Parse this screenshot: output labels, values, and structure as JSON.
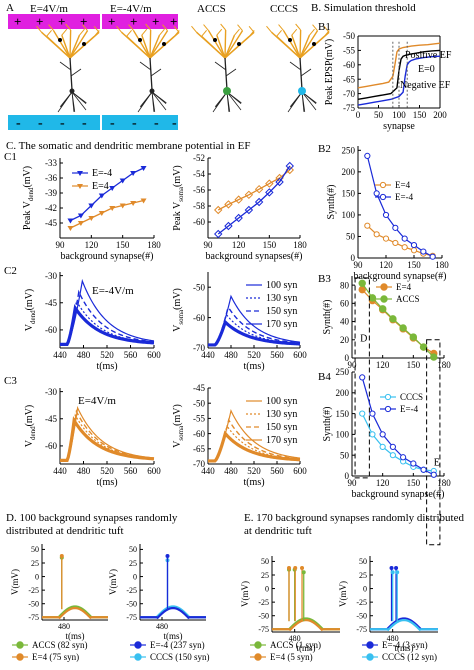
{
  "panels": {
    "A": "A",
    "B": "B. Simulation threshold",
    "C": "C. The somatic and dendritic membrane potential  in  EF",
    "D": "D. 100 background synapses  randomly distributed at dendritic tuft",
    "E": "E. 170 background synapses  randomly distributed at dendritic tuft"
  },
  "neurons": {
    "labels": [
      "E=4V/m",
      "E=-4V/m",
      "ACCS",
      "CCCS"
    ],
    "plus_row": [
      "+",
      "+",
      "+",
      "+"
    ],
    "minus_row": [
      "-",
      "-",
      "-",
      "-"
    ],
    "colors": {
      "plate_top": "#e020e0",
      "plate_bottom": "#20b8e8",
      "tuft": "#e8a020",
      "soma": "#3aa040"
    }
  },
  "subpanels": {
    "B1": "B1",
    "B2": "B2",
    "B3": "B3",
    "B4": "B4",
    "C1": "C1",
    "C2": "C2",
    "C3": "C3",
    "C2_note": "E=-4V/m",
    "C3_note": "E=4V/m",
    "B3_mark_D": "D",
    "B4_mark_E": "E"
  },
  "colors": {
    "orange": "#e08a2a",
    "blue": "#1a2ad8",
    "green": "#7ab83a",
    "cyan": "#38c0f0",
    "black": "#000000",
    "gray": "#808080"
  },
  "chart_data": [
    {
      "id": "B1",
      "type": "line",
      "xlabel": "synapse",
      "ylabel": "Peak EPSP(mV)",
      "xlim": [
        0,
        200
      ],
      "ylim": [
        -75,
        -50
      ],
      "xticks": [
        0,
        50,
        100,
        150,
        200
      ],
      "yticks": [
        -75,
        -70,
        -65,
        -60,
        -55,
        -50
      ],
      "series": [
        {
          "name": "Positive EF",
          "color": "orange",
          "x": [
            0,
            20,
            40,
            60,
            75,
            85,
            90,
            95,
            100,
            110,
            130,
            150,
            170,
            200
          ],
          "y": [
            -68,
            -67.5,
            -67,
            -66.5,
            -66,
            -64,
            -60,
            -55.5,
            -54.5,
            -54,
            -53.5,
            -53.2,
            -53,
            -52.5
          ]
        },
        {
          "name": "E=0",
          "color": "black",
          "x": [
            0,
            20,
            40,
            60,
            80,
            95,
            100,
            105,
            110,
            120,
            140,
            160,
            180,
            200
          ],
          "y": [
            -72,
            -71.5,
            -71,
            -70.5,
            -70,
            -68,
            -62,
            -58,
            -57,
            -56.5,
            -56,
            -55.5,
            -55.2,
            -55
          ]
        },
        {
          "name": "Negative EF",
          "color": "blue",
          "x": [
            0,
            20,
            40,
            60,
            80,
            100,
            110,
            115,
            120,
            125,
            130,
            140,
            160,
            180,
            200
          ],
          "y": [
            -74,
            -73.5,
            -73,
            -72.5,
            -72,
            -71,
            -69.5,
            -64,
            -60,
            -59,
            -58.5,
            -58,
            -57.5,
            -57.2,
            -57
          ]
        },
        {
          "name": "Positive EF",
          "color": "orange",
          "x": [
            0,
            200
          ],
          "y": [
            -68,
            -52.5
          ],
          "label_only": true
        }
      ],
      "vlines": [
        85,
        100,
        120
      ]
    },
    {
      "id": "B2",
      "type": "line",
      "xlabel": "background synapse(#)",
      "ylabel": "Synth(#)",
      "xlim": [
        90,
        180
      ],
      "ylim": [
        0,
        260
      ],
      "xticks": [
        90,
        120,
        150,
        180
      ],
      "yticks": [
        0,
        50,
        100,
        150,
        200,
        250
      ],
      "series": [
        {
          "name": "E=4",
          "color": "orange",
          "x": [
            100,
            110,
            120,
            130,
            140,
            150,
            160,
            170
          ],
          "y": [
            75,
            55,
            45,
            35,
            25,
            18,
            10,
            5
          ]
        },
        {
          "name": "E=-4",
          "color": "blue",
          "x": [
            100,
            110,
            120,
            130,
            140,
            150,
            160,
            170
          ],
          "y": [
            237,
            150,
            100,
            70,
            45,
            30,
            15,
            3
          ]
        }
      ]
    },
    {
      "id": "B3",
      "type": "line",
      "xlabel": "",
      "ylabel": "Synth(#)",
      "xlim": [
        90,
        180
      ],
      "ylim": [
        0,
        90
      ],
      "xticks": [
        90,
        120,
        150,
        180
      ],
      "yticks": [
        0,
        20,
        40,
        60,
        80
      ],
      "series": [
        {
          "name": "E=4",
          "color": "orange",
          "x": [
            100,
            110,
            120,
            130,
            140,
            150,
            160,
            170
          ],
          "y": [
            75,
            63,
            53,
            42,
            32,
            22,
            12,
            5
          ]
        },
        {
          "name": "ACCS",
          "color": "green",
          "x": [
            100,
            110,
            120,
            130,
            140,
            150,
            160,
            170
          ],
          "y": [
            82,
            66,
            54,
            43,
            33,
            23,
            12,
            1
          ]
        }
      ]
    },
    {
      "id": "B4",
      "type": "line",
      "xlabel": "background synapse(#)",
      "ylabel": "Synth(#)",
      "xlim": [
        90,
        180
      ],
      "ylim": [
        0,
        250
      ],
      "xticks": [
        90,
        120,
        150,
        180
      ],
      "yticks": [
        0,
        50,
        100,
        150,
        200,
        250
      ],
      "series": [
        {
          "name": "CCCS",
          "color": "cyan",
          "x": [
            100,
            110,
            120,
            130,
            140,
            150,
            160,
            170
          ],
          "y": [
            150,
            100,
            70,
            50,
            35,
            22,
            15,
            12
          ]
        },
        {
          "name": "E=-4",
          "color": "blue",
          "x": [
            100,
            110,
            120,
            130,
            140,
            150,
            160,
            170
          ],
          "y": [
            237,
            150,
            100,
            70,
            45,
            30,
            15,
            3
          ]
        }
      ]
    },
    {
      "id": "C1a",
      "type": "line",
      "xlabel": "background synapse(#)",
      "ylabel": "Peak V_dend(mV)",
      "xlim": [
        90,
        180
      ],
      "ylim": [
        -48,
        -32
      ],
      "xticks": [
        90,
        120,
        150,
        180
      ],
      "yticks": [
        -45,
        -42,
        -39,
        -36,
        -33
      ],
      "series": [
        {
          "name": "E=-4",
          "color": "blue",
          "x": [
            100,
            110,
            120,
            130,
            140,
            150,
            160,
            170
          ],
          "y": [
            -44.5,
            -43.5,
            -41.5,
            -39.5,
            -38,
            -36.5,
            -35,
            -34
          ]
        },
        {
          "name": "E=4",
          "color": "orange",
          "x": [
            100,
            110,
            120,
            130,
            140,
            150,
            160,
            170
          ],
          "y": [
            -46,
            -45,
            -44,
            -43,
            -42,
            -41.5,
            -41,
            -40.5
          ]
        }
      ]
    },
    {
      "id": "C1b",
      "type": "line",
      "xlabel": "background synapses(#)",
      "ylabel": "Peak V_soma(mV)",
      "xlim": [
        90,
        180
      ],
      "ylim": [
        -62,
        -52
      ],
      "xticks": [
        90,
        120,
        150,
        180
      ],
      "yticks": [
        -60,
        -58,
        -56,
        -54,
        -52
      ],
      "series": [
        {
          "name": "E=4",
          "color": "orange",
          "x": [
            100,
            110,
            120,
            130,
            140,
            150,
            160,
            170
          ],
          "y": [
            -58.5,
            -57.8,
            -57.2,
            -56.6,
            -55.9,
            -55.2,
            -54.5,
            -53.5
          ]
        },
        {
          "name": "E=-4",
          "color": "blue",
          "x": [
            100,
            110,
            120,
            130,
            140,
            150,
            160,
            170
          ],
          "y": [
            -61.5,
            -60.5,
            -59.5,
            -58.5,
            -57.5,
            -56.3,
            -55,
            -53
          ]
        }
      ]
    },
    {
      "id": "C2a",
      "type": "line",
      "xlabel": "t(ms)",
      "ylabel": "V_dend(mV)",
      "xlim": [
        440,
        600
      ],
      "ylim": [
        -70,
        -28
      ],
      "xticks": [
        440,
        480,
        520,
        560,
        600
      ],
      "yticks": [
        -60,
        -45,
        -30
      ],
      "peaks": [
        -48,
        -44,
        -39,
        -33
      ],
      "peak_t": [
        466,
        468,
        472,
        478
      ],
      "rest": -68,
      "series": [
        {
          "name": "100 syn"
        },
        {
          "name": "130 syn"
        },
        {
          "name": "150 syn"
        },
        {
          "name": "170 syn"
        }
      ]
    },
    {
      "id": "C2b",
      "type": "line",
      "xlabel": "t(ms)",
      "ylabel": "V_soma(mV)",
      "xlim": [
        440,
        600
      ],
      "ylim": [
        -70,
        -45
      ],
      "xticks": [
        440,
        480,
        520,
        560,
        600
      ],
      "yticks": [
        -70,
        -60,
        -50
      ],
      "peaks": [
        -61.5,
        -59,
        -56.5,
        -53
      ],
      "peak_t": [
        470,
        472,
        475,
        480
      ],
      "rest": -69,
      "legend": [
        "100 syn",
        "130 syn",
        "150 syn",
        "170 syn"
      ],
      "series": [
        {
          "name": "100 syn"
        },
        {
          "name": "130 syn"
        },
        {
          "name": "150 syn"
        },
        {
          "name": "170 syn"
        }
      ]
    },
    {
      "id": "C3a",
      "type": "line",
      "xlabel": "t(ms)",
      "ylabel": "V_dend(mV)",
      "xlim": [
        440,
        600
      ],
      "ylim": [
        -70,
        -28
      ],
      "xticks": [
        440,
        480,
        520,
        560,
        600
      ],
      "yticks": [
        -60,
        -45,
        -30
      ],
      "peaks": [
        -46,
        -43,
        -41,
        -39
      ],
      "peak_t": [
        464,
        466,
        468,
        470
      ],
      "rest": -68,
      "series": [
        {
          "name": "100 syn"
        },
        {
          "name": "130 syn"
        },
        {
          "name": "150 syn"
        },
        {
          "name": "170 syn"
        }
      ]
    },
    {
      "id": "C3b",
      "type": "line",
      "xlabel": "t(ms)",
      "ylabel": "V_soma(mV)",
      "xlim": [
        440,
        600
      ],
      "ylim": [
        -70,
        -45
      ],
      "xticks": [
        440,
        480,
        520,
        560,
        600
      ],
      "yticks": [
        -70,
        -65,
        -60,
        -55,
        -50,
        -45
      ],
      "peaks": [
        -60,
        -57.5,
        -55.5,
        -52.5
      ],
      "peak_t": [
        470,
        473,
        476,
        480
      ],
      "rest": -69,
      "legend": [
        "100 syn",
        "130 syn",
        "150 syn",
        "170 syn"
      ],
      "series": [
        {
          "name": "100 syn"
        },
        {
          "name": "130 syn"
        },
        {
          "name": "150 syn"
        },
        {
          "name": "170 syn"
        }
      ]
    },
    {
      "id": "Da",
      "type": "line",
      "xlabel": "t(ms)",
      "ylabel": "V(mV)",
      "xlim": [
        440,
        560
      ],
      "ylim": [
        -80,
        60
      ],
      "xticks": [
        480
      ],
      "yticks": [
        -75,
        -50,
        -25,
        0,
        25,
        50
      ],
      "spikes": [
        {
          "color": "green",
          "t": 476,
          "peak": 35
        },
        {
          "color": "orange",
          "t": 476,
          "peak": 38
        }
      ],
      "series": [
        {
          "name": "ACCS (82 syn)",
          "color": "green"
        },
        {
          "name": "E=4 (75 syn)",
          "color": "orange"
        }
      ]
    },
    {
      "id": "Db",
      "type": "line",
      "xlabel": "t(ms)",
      "ylabel": "V(mV)",
      "xlim": [
        440,
        560
      ],
      "ylim": [
        -80,
        60
      ],
      "xticks": [
        480
      ],
      "yticks": [
        -75,
        -50,
        -25,
        0,
        25,
        50
      ],
      "spikes": [
        {
          "color": "cyan",
          "t": 490,
          "peak": 30
        },
        {
          "color": "blue",
          "t": 490,
          "peak": 38
        }
      ],
      "series": [
        {
          "name": "E=-4 (237 syn)",
          "color": "blue"
        },
        {
          "name": "CCCS (150 syn)",
          "color": "cyan"
        }
      ]
    },
    {
      "id": "Ea",
      "type": "line",
      "xlabel": "t(ms)",
      "ylabel": "V(mV)",
      "xlim": [
        440,
        560
      ],
      "ylim": [
        -80,
        60
      ],
      "xticks": [
        480
      ],
      "yticks": [
        -75,
        -50,
        -25,
        0,
        25,
        50
      ],
      "spikes": [
        {
          "color": "green",
          "t": 470,
          "peak": 35
        },
        {
          "color": "orange",
          "t": 470,
          "peak": 38
        },
        {
          "color": "green",
          "t": 480,
          "peak": 35
        },
        {
          "color": "orange",
          "t": 481,
          "peak": 38
        },
        {
          "color": "orange",
          "t": 493,
          "peak": 38
        },
        {
          "color": "green",
          "t": 496,
          "peak": 30
        }
      ],
      "series": [
        {
          "name": "ACCS (1 syn)",
          "color": "green"
        },
        {
          "name": "E=4 (5 syn)",
          "color": "orange"
        }
      ]
    },
    {
      "id": "Eb",
      "type": "line",
      "xlabel": "t(ms)",
      "ylabel": "V(mV)",
      "xlim": [
        440,
        560
      ],
      "ylim": [
        -80,
        60
      ],
      "xticks": [
        480
      ],
      "yticks": [
        -75,
        -50,
        -25,
        0,
        25,
        50
      ],
      "spikes": [
        {
          "color": "blue",
          "t": 478,
          "peak": 38
        },
        {
          "color": "cyan",
          "t": 480,
          "peak": 30
        },
        {
          "color": "blue",
          "t": 486,
          "peak": 38
        },
        {
          "color": "cyan",
          "t": 488,
          "peak": 30
        }
      ],
      "series": [
        {
          "name": "E=-4 (3 syn)",
          "color": "blue"
        },
        {
          "name": "CCCS (12 syn)",
          "color": "cyan"
        }
      ]
    }
  ]
}
